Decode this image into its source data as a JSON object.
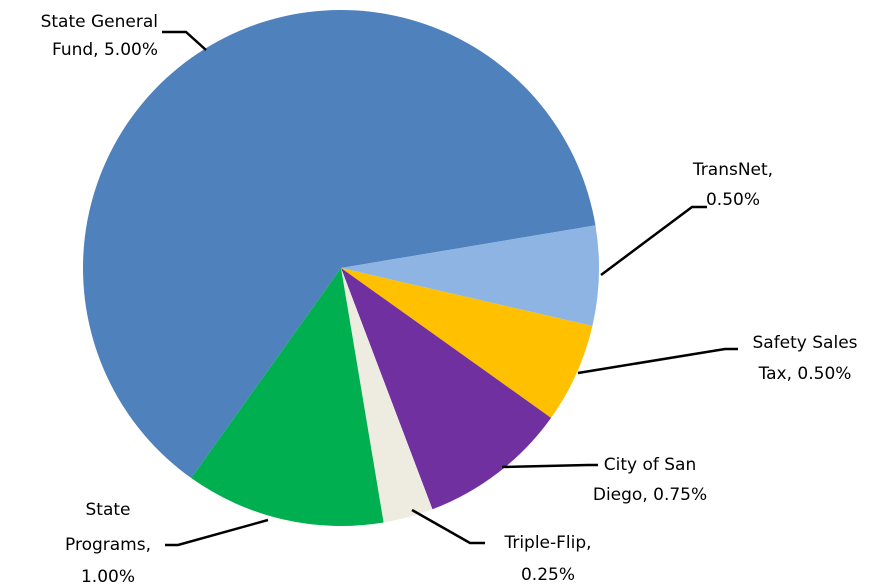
{
  "chart_data": {
    "type": "pie",
    "values": [
      5.0,
      0.5,
      0.5,
      0.75,
      0.25,
      1.0
    ],
    "value_labels": [
      [
        "State General",
        "Fund, 5.00%"
      ],
      [
        "TransNet,",
        "0.50%"
      ],
      [
        "Safety Sales",
        "Tax, 0.50%"
      ],
      [
        "City of San",
        "Diego, 0.75%"
      ],
      [
        "Triple-Flip,",
        "0.25%"
      ],
      [
        "State",
        "Programs,",
        "1.00%"
      ]
    ],
    "colors": [
      "#4f81bd",
      "#8eb4e3",
      "#ffc000",
      "#7030a0",
      "#eeece1",
      "#00b050"
    ]
  }
}
